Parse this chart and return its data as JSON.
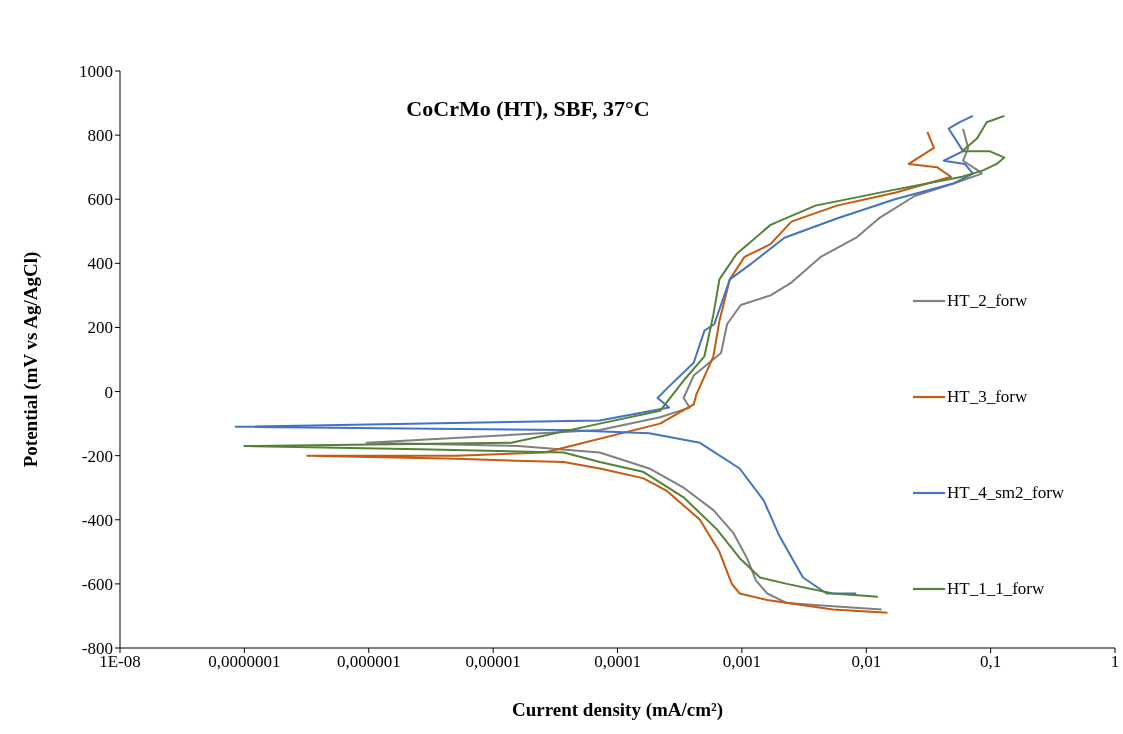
{
  "chart_data": {
    "type": "line",
    "title": "CoCrMo (HT), SBF, 37°C",
    "xlabel": "Current  density (mA/cm²)",
    "ylabel": "Potential (mV vs Ag/AgCl)",
    "log": "x",
    "xlim": [
      1e-08,
      1
    ],
    "xticks": [
      {
        "value": 1e-08,
        "label": "1E-08"
      },
      {
        "value": 1e-07,
        "label": "0,0000001"
      },
      {
        "value": 1e-06,
        "label": "0,000001"
      },
      {
        "value": 1e-05,
        "label": "0,00001"
      },
      {
        "value": 0.0001,
        "label": "0,0001"
      },
      {
        "value": 0.001,
        "label": "0,001"
      },
      {
        "value": 0.01,
        "label": "0,01"
      },
      {
        "value": 0.1,
        "label": "0,1"
      },
      {
        "value": 1,
        "label": "1"
      }
    ],
    "ylim": [
      -800,
      1000
    ],
    "yticks": [
      -800,
      -600,
      -400,
      -200,
      0,
      200,
      400,
      600,
      800,
      1000
    ],
    "legend": "right",
    "marker": "none",
    "line_style": "solid",
    "series": [
      {
        "name": "HT_2_forw",
        "color": "#808080",
        "x": [
          0.0133,
          0.0054,
          0.0023,
          0.0016,
          0.0013,
          0.0011,
          0.00085,
          0.00059,
          0.00034,
          0.00018,
          7.2e-05,
          1.6e-05,
          9.6e-07,
          7.2e-05,
          0.00022,
          0.00038,
          0.00034,
          0.00041,
          0.00068,
          0.00076,
          0.00098,
          0.0017,
          0.0025,
          0.0043,
          0.0083,
          0.0126,
          0.0245,
          0.051,
          0.085,
          0.079,
          0.06,
          0.066,
          0.06
        ],
        "values": [
          -680,
          -670,
          -660,
          -630,
          -590,
          -520,
          -440,
          -370,
          -300,
          -240,
          -190,
          -170,
          -160,
          -120,
          -80,
          -50,
          -20,
          50,
          120,
          210,
          270,
          300,
          340,
          420,
          480,
          540,
          610,
          650,
          680,
          690,
          720,
          760,
          820
        ]
      },
      {
        "name": "HT_3_forw",
        "color": "#c55a11",
        "x": [
          0.0148,
          0.0054,
          0.0016,
          0.00096,
          0.00083,
          0.00066,
          0.00046,
          0.00025,
          0.00016,
          7.2e-05,
          3.7e-05,
          5.1e-06,
          3.2e-07,
          5.1e-06,
          2.6e-05,
          0.00022,
          0.00041,
          0.00043,
          0.00059,
          0.00066,
          0.0008,
          0.00105,
          0.0017,
          0.0025,
          0.0058,
          0.017,
          0.048,
          0.037,
          0.022,
          0.035,
          0.031
        ],
        "values": [
          -690,
          -680,
          -650,
          -630,
          -600,
          -500,
          -400,
          -310,
          -270,
          -240,
          -220,
          -210,
          -200,
          -200,
          -190,
          -100,
          -40,
          -10,
          110,
          220,
          350,
          420,
          460,
          530,
          580,
          620,
          670,
          700,
          710,
          760,
          810
        ]
      },
      {
        "name": "HT_4_sm2_forw",
        "color": "#4472c4",
        "x": [
          0.0083,
          0.0048,
          0.0031,
          0.002,
          0.0015,
          0.00096,
          0.00046,
          0.00018,
          3.7e-05,
          8.5e-08,
          7.2e-05,
          0.00026,
          0.00021,
          0.00025,
          0.00041,
          0.0005,
          0.0006,
          0.0008,
          0.0012,
          0.0022,
          0.0058,
          0.017,
          0.051,
          0.072,
          0.062,
          0.042,
          0.06,
          0.046,
          0.056,
          0.072
        ],
        "values": [
          -630,
          -630,
          -580,
          -450,
          -340,
          -240,
          -160,
          -130,
          -120,
          -110,
          -90,
          -50,
          -20,
          10,
          90,
          190,
          210,
          350,
          400,
          480,
          540,
          600,
          650,
          680,
          710,
          720,
          750,
          820,
          840,
          860
        ]
      },
      {
        "name": "HT_1_1_forw",
        "color": "#548235",
        "x": [
          0.0124,
          0.0054,
          0.0023,
          0.0014,
          0.00096,
          0.00063,
          0.00034,
          0.00016,
          7.2e-05,
          3.7e-05,
          2.6e-06,
          1e-07,
          1.4e-05,
          7.2e-05,
          0.00022,
          0.00035,
          0.0005,
          0.00059,
          0.00066,
          0.00091,
          0.0017,
          0.0039,
          0.017,
          0.059,
          0.087,
          0.112,
          0.129,
          0.098,
          0.059,
          0.078,
          0.093,
          0.129
        ],
        "values": [
          -640,
          -630,
          -600,
          -580,
          -520,
          -430,
          -330,
          -250,
          -220,
          -190,
          -180,
          -170,
          -160,
          -100,
          -60,
          40,
          110,
          240,
          350,
          430,
          520,
          580,
          630,
          670,
          690,
          710,
          730,
          750,
          750,
          790,
          840,
          860
        ]
      }
    ]
  }
}
